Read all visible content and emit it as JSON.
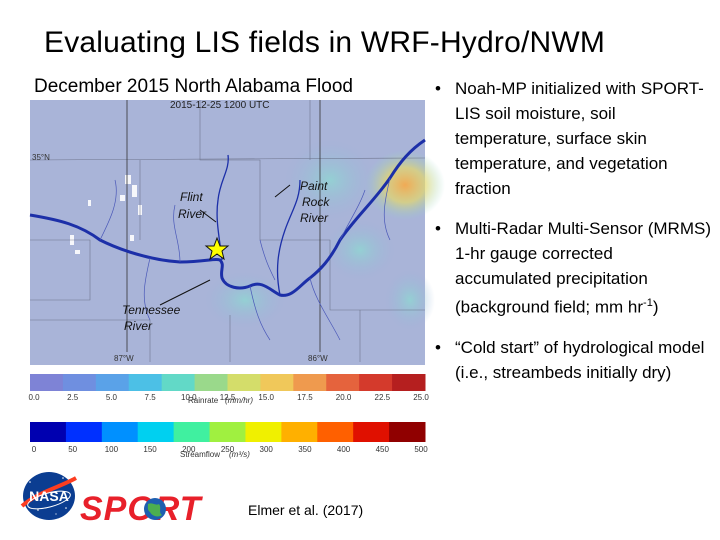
{
  "slide": {
    "title": "Evaluating LIS fields in WRF-Hydro/NWM",
    "subtitle": "December 2015 North Alabama Flood",
    "citation": "Elmer et al. (2017)"
  },
  "map": {
    "timestamp": "2015-12-25 1200 UTC",
    "lat_label": "35°N",
    "lon_labels": [
      "87°W",
      "86°W"
    ],
    "rivers": {
      "flint": [
        "Flint",
        "River"
      ],
      "paint_rock": [
        "Paint",
        "Rock",
        "River"
      ],
      "tennessee": [
        "Tennessee",
        "River"
      ]
    },
    "colors": {
      "background": "#a9b4d8",
      "river": "#1c2fa8",
      "hotspot": "#f1b35a"
    }
  },
  "rainrate_bar": {
    "ticks": [
      "0.0",
      "2.5",
      "5.0",
      "7.5",
      "10.0",
      "12.5",
      "15.0",
      "17.5",
      "20.0",
      "22.5",
      "25.0"
    ],
    "label": "Rainrate",
    "units": "(mm/hr)",
    "colors": [
      "#7e83d6",
      "#6f8fe0",
      "#5aa2e8",
      "#4cc0e6",
      "#62d9c7",
      "#9ad98b",
      "#d4dd6a",
      "#f0c85a",
      "#ef9a4e",
      "#e5633d",
      "#d43a2c",
      "#b51f1f"
    ]
  },
  "streamflow_bar": {
    "ticks": [
      "0",
      "50",
      "100",
      "150",
      "200",
      "250",
      "300",
      "350",
      "400",
      "450",
      "500"
    ],
    "label": "Streamflow",
    "units": "(m³/s)",
    "colors": [
      "#0000b0",
      "#0030ff",
      "#0090ff",
      "#00d0f0",
      "#40f0a0",
      "#a0f040",
      "#f0f000",
      "#ffb000",
      "#ff6000",
      "#e01000",
      "#900000"
    ]
  },
  "bullets": [
    {
      "text": "Noah-MP initialized with SPORT-LIS soil moisture, soil temperature, surface skin temperature, and vegetation fraction"
    },
    {
      "text_before": "Multi-Radar Multi-Sensor (MRMS) 1-hr gauge corrected accumulated precipitation (background field; mm hr",
      "sup": "-1",
      "text_after": ")"
    },
    {
      "text": "“Cold start” of hydrological model (i.e., streambeds initially dry)"
    }
  ],
  "bullet_char": "•",
  "logos": {
    "nasa": "NASA",
    "sport": "SPORT"
  }
}
